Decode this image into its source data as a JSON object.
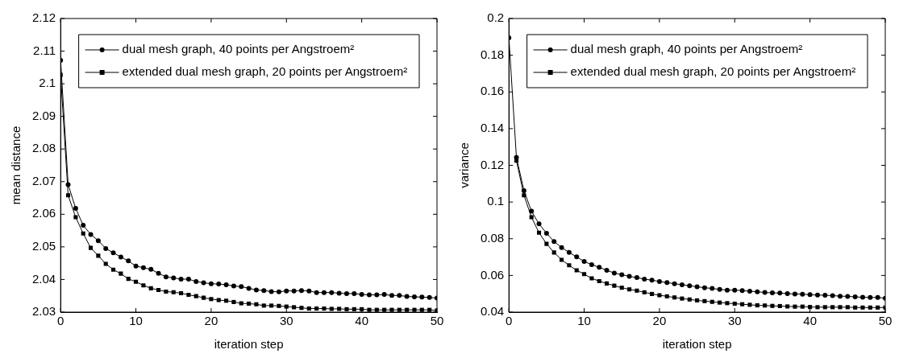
{
  "chart_data": [
    {
      "type": "line",
      "xlabel": "iteration step",
      "ylabel": "mean distance",
      "x": [
        0,
        1,
        2,
        3,
        4,
        5,
        6,
        7,
        8,
        9,
        10,
        11,
        12,
        13,
        14,
        15,
        16,
        17,
        18,
        19,
        20,
        21,
        22,
        23,
        24,
        25,
        26,
        27,
        28,
        29,
        30,
        31,
        32,
        33,
        34,
        35,
        36,
        37,
        38,
        39,
        40,
        41,
        42,
        43,
        44,
        45,
        46,
        47,
        48,
        49,
        50
      ],
      "series": [
        {
          "name": "dual mesh graph, 40 points per Angstroem²",
          "color": "#000000",
          "marker": "circle",
          "values": [
            2.1072,
            2.0691,
            2.0618,
            2.0566,
            2.0538,
            2.0519,
            2.0495,
            2.0482,
            2.0469,
            2.0457,
            2.0441,
            2.0436,
            2.0431,
            2.0419,
            2.0408,
            2.0405,
            2.0401,
            2.0401,
            2.0394,
            2.039,
            2.0387,
            2.0386,
            2.0384,
            2.038,
            2.0378,
            2.0373,
            2.0368,
            2.0366,
            2.0363,
            2.0362,
            2.0365,
            2.0365,
            2.0366,
            2.0365,
            2.036,
            2.036,
            2.036,
            2.0358,
            2.0357,
            2.0357,
            2.0354,
            2.0353,
            2.0353,
            2.0354,
            2.0351,
            2.0351,
            2.0348,
            2.0347,
            2.0346,
            2.0345,
            2.0343
          ]
        },
        {
          "name": "extended dual mesh graph, 20 points per Angstroem²",
          "color": "#000000",
          "marker": "square",
          "values": [
            2.1027,
            2.0658,
            2.0591,
            2.0541,
            2.0497,
            2.0473,
            2.0448,
            2.043,
            2.0418,
            2.0402,
            2.0393,
            2.0382,
            2.0373,
            2.0368,
            2.0363,
            2.0361,
            2.0358,
            2.0353,
            2.0349,
            2.0344,
            2.034,
            2.0337,
            2.0335,
            2.0331,
            2.0327,
            2.0326,
            2.0324,
            2.032,
            2.032,
            2.0319,
            2.0317,
            2.0315,
            2.0313,
            2.0311,
            2.0311,
            2.0311,
            2.031,
            2.031,
            2.0309,
            2.0309,
            2.0309,
            2.0307,
            2.0307,
            2.0307,
            2.0307,
            2.0307,
            2.0307,
            2.0307,
            2.0307,
            2.0307,
            2.0305
          ]
        }
      ],
      "xlim": [
        0,
        50
      ],
      "xticks": [
        0,
        10,
        20,
        30,
        40,
        50
      ],
      "ylim": [
        2.03,
        2.12
      ],
      "yticks": [
        2.03,
        2.04,
        2.05,
        2.06,
        2.07,
        2.08,
        2.09,
        2.1,
        2.11,
        2.12
      ],
      "grid": false,
      "legend": "top right",
      "line_style": "solid"
    },
    {
      "type": "line",
      "xlabel": "iteration step",
      "ylabel": "variance",
      "x": [
        0,
        1,
        2,
        3,
        4,
        5,
        6,
        7,
        8,
        9,
        10,
        11,
        12,
        13,
        14,
        15,
        16,
        17,
        18,
        19,
        20,
        21,
        22,
        23,
        24,
        25,
        26,
        27,
        28,
        29,
        30,
        31,
        32,
        33,
        34,
        35,
        36,
        37,
        38,
        39,
        40,
        41,
        42,
        43,
        44,
        45,
        46,
        47,
        48,
        49,
        50
      ],
      "series": [
        {
          "name": "dual mesh graph, 40 points per Angstroem²",
          "color": "#000000",
          "marker": "circle",
          "values": [
            0.1895,
            0.1243,
            0.1062,
            0.095,
            0.0881,
            0.083,
            0.0785,
            0.0752,
            0.0725,
            0.0701,
            0.0676,
            0.0659,
            0.0644,
            0.0628,
            0.0613,
            0.0604,
            0.0595,
            0.0588,
            0.058,
            0.0574,
            0.0567,
            0.0561,
            0.0555,
            0.0549,
            0.0544,
            0.0538,
            0.0533,
            0.0529,
            0.0524,
            0.052,
            0.052,
            0.0517,
            0.0514,
            0.0511,
            0.0507,
            0.0505,
            0.0504,
            0.0501,
            0.0499,
            0.0498,
            0.0495,
            0.0493,
            0.0492,
            0.049,
            0.0487,
            0.0486,
            0.0483,
            0.0481,
            0.048,
            0.048,
            0.0476
          ]
        },
        {
          "name": "extended dual mesh graph, 20 points per Angstroem²",
          "color": "#000000",
          "marker": "square",
          "values": [
            null,
            0.1225,
            0.1037,
            0.0917,
            0.0833,
            0.0772,
            0.0725,
            0.0685,
            0.0655,
            0.0628,
            0.0607,
            0.0584,
            0.0569,
            0.0556,
            0.0544,
            0.0533,
            0.0524,
            0.0517,
            0.0508,
            0.0499,
            0.0492,
            0.0486,
            0.048,
            0.0474,
            0.0469,
            0.0464,
            0.046,
            0.0456,
            0.0452,
            0.0449,
            0.0446,
            0.0443,
            0.044,
            0.0437,
            0.0436,
            0.0434,
            0.0433,
            0.0431,
            0.043,
            0.043,
            0.0428,
            0.0427,
            0.0427,
            0.0427,
            0.0427,
            0.0427,
            0.0425,
            0.0425,
            0.0425,
            0.0425,
            0.0425
          ]
        }
      ],
      "xlim": [
        0,
        50
      ],
      "xticks": [
        0,
        10,
        20,
        30,
        40,
        50
      ],
      "ylim": [
        0.04,
        0.2
      ],
      "yticks": [
        0.04,
        0.06,
        0.08,
        0.1,
        0.12,
        0.14,
        0.16,
        0.18,
        0.2
      ],
      "grid": false,
      "legend": "top right",
      "line_style": "solid"
    }
  ]
}
